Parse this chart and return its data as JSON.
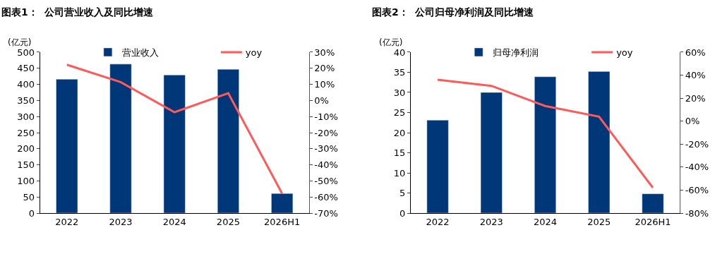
{
  "chart_data": [
    {
      "type": "bar",
      "title": "图表1：  公司营业收入及同比增速",
      "ylabel": "(亿元)",
      "categories": [
        "2022",
        "2023",
        "2024",
        "2025",
        "2026H1"
      ],
      "series": [
        {
          "name": "营业收入",
          "color": "#003778",
          "values": [
            416,
            463,
            429,
            447,
            61
          ]
        },
        {
          "name": "yoy",
          "type": "line",
          "axis": "y2",
          "color": "#ff5a5a",
          "values": [
            22.2,
            11.4,
            -7.3,
            4.5,
            -57.8
          ]
        }
      ],
      "ylim": [
        0,
        500
      ],
      "yticks": [
        0,
        50,
        100,
        150,
        200,
        250,
        300,
        350,
        400,
        450,
        500
      ],
      "y2lim": [
        -70,
        30
      ],
      "y2ticks": [
        {
          "value": -70,
          "label": "-70%"
        },
        {
          "value": -60,
          "label": "-60%"
        },
        {
          "value": -50,
          "label": "-50%"
        },
        {
          "value": -40,
          "label": "-40%"
        },
        {
          "value": -30,
          "label": "-30%"
        },
        {
          "value": -20,
          "label": "-20%"
        },
        {
          "value": -10,
          "label": "-10%"
        },
        {
          "value": 0,
          "label": "0%"
        },
        {
          "value": 10,
          "label": "10%"
        },
        {
          "value": 20,
          "label": "20%"
        },
        {
          "value": 30,
          "label": "30%"
        }
      ],
      "legend": "top",
      "grid": false,
      "marker": "none",
      "line_style": "solid"
    },
    {
      "type": "bar",
      "title": "图表2：  公司归母净利润及同比增速",
      "ylabel": "(亿元)",
      "categories": [
        "2022",
        "2023",
        "2024",
        "2025",
        "2026H1"
      ],
      "series": [
        {
          "name": "归母净利润",
          "color": "#003778",
          "values": [
            23.1,
            30.0,
            33.9,
            35.2,
            4.8
          ]
        },
        {
          "name": "yoy",
          "type": "line",
          "axis": "y2",
          "color": "#ff5a5a",
          "values": [
            36.0,
            30.7,
            13.2,
            3.9,
            -57.9
          ]
        }
      ],
      "ylim": [
        0,
        40
      ],
      "yticks": [
        0,
        5,
        10,
        15,
        20,
        25,
        30,
        35,
        40
      ],
      "y2lim": [
        -80,
        60
      ],
      "y2ticks": [
        {
          "value": -80,
          "label": "-80%"
        },
        {
          "value": -60,
          "label": "-60%"
        },
        {
          "value": -40,
          "label": "-40%"
        },
        {
          "value": -20,
          "label": "-20%"
        },
        {
          "value": 0,
          "label": "0%"
        },
        {
          "value": 20,
          "label": "20%"
        },
        {
          "value": 40,
          "label": "40%"
        },
        {
          "value": 60,
          "label": "60%"
        }
      ],
      "legend": "top",
      "grid": false,
      "marker": "none",
      "line_style": "solid"
    }
  ]
}
